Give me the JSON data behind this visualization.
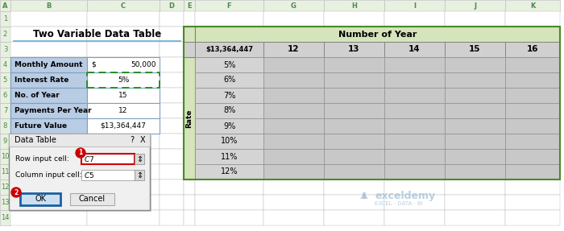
{
  "title": "Two Variable Data Table",
  "bg_color": "#ffffff",
  "left_table": {
    "headers": [
      "Monthly Amount",
      "Interest Rate",
      "No. of Year",
      "Payments Per Year",
      "Future Value"
    ],
    "col_b_values": [
      "$",
      "",
      "15",
      "12",
      "$13,364,447"
    ],
    "col_c_values": [
      "50,000",
      "5%",
      "",
      "",
      ""
    ],
    "all_values": [
      "$     50,000",
      "5%",
      "15",
      "12",
      "$13,364,447"
    ],
    "header_bg": "#b8cce4",
    "value_bg": "#ffffff",
    "green_bg": "#e2efda",
    "dashed_rows": [
      1
    ]
  },
  "right_table": {
    "col_header": "Number of Year",
    "col_header_bg": "#d6e4bc",
    "corner_cell": "$13,364,447",
    "col_values": [
      "12",
      "13",
      "14",
      "15",
      "16"
    ],
    "row_label": "Rate",
    "row_values": [
      "5%",
      "6%",
      "7%",
      "8%",
      "9%",
      "10%",
      "11%",
      "12%"
    ],
    "data_bg": "#c0c0c0",
    "corner_bg": "#d0d0d0",
    "rate_col_bg": "#d6e4bc",
    "header_row_bg": "#d0d0d0"
  },
  "dialog": {
    "title": "Data Table",
    "row_input_label": "Row input cell:",
    "row_input_value": "$C$7",
    "col_input_label": "Column input cell:",
    "col_input_value": "$C$5",
    "ok_text": "OK",
    "cancel_text": "Cancel",
    "bg": "#f0f0f0",
    "input_bg": "#ffffff",
    "ok_bg": "#cce0f0",
    "ok_border": "#1a60a0",
    "badge_color": "#cc0000",
    "input_border_color": "#cc0000"
  },
  "excel_col_headers": [
    "A",
    "B",
    "C",
    "D",
    "E",
    "F",
    "G",
    "H",
    "I",
    "J",
    "K"
  ],
  "excel_col_header_bg": "#e8f0e0",
  "excel_row_header_bg": "#e8f0e0",
  "excel_grid_color": "#b8b8b8",
  "col_header_text_color": "#4a8a4a",
  "row_header_text_color": "#4a8a4a"
}
